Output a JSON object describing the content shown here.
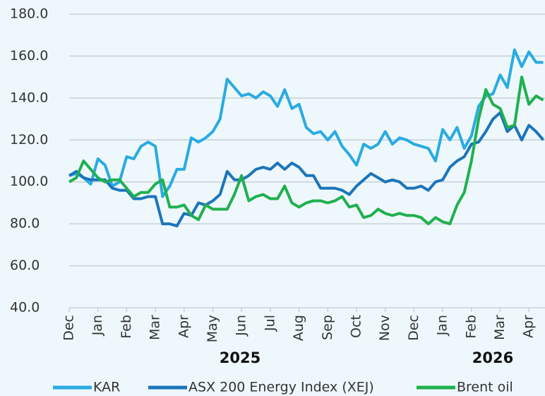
{
  "chart_data": {
    "type": "line",
    "annotations": [
      "2025",
      "2026"
    ],
    "x": [
      0,
      0.25,
      0.5,
      0.75,
      1,
      1.25,
      1.5,
      1.75,
      2,
      2.25,
      2.5,
      2.75,
      3,
      3.25,
      3.5,
      3.75,
      4,
      4.25,
      4.5,
      4.75,
      5,
      5.25,
      5.5,
      5.75,
      6,
      6.25,
      6.5,
      6.75,
      7,
      7.25,
      7.5,
      7.75,
      8,
      8.25,
      8.5,
      8.75,
      9,
      9.25,
      9.5,
      9.75,
      10,
      10.25,
      10.5,
      10.75,
      11,
      11.25,
      11.5,
      11.75,
      12,
      12.25,
      12.5,
      12.75,
      13,
      13.25,
      13.5,
      13.75,
      14,
      14.25,
      14.5,
      14.75,
      15,
      15.25,
      15.5,
      15.75,
      16,
      16.25,
      16.5
    ],
    "series": [
      {
        "name": "KAR",
        "color": "#29abe2",
        "values": [
          103,
          104,
          102,
          99,
          111,
          108,
          98,
          100,
          112,
          111,
          117,
          119,
          117,
          93,
          98,
          106,
          106,
          121,
          119,
          121,
          124,
          130,
          149,
          145,
          141,
          142,
          140,
          143,
          141,
          136,
          144,
          135,
          137,
          126,
          123,
          124,
          120,
          124,
          117,
          113,
          108,
          118,
          116,
          118,
          124,
          118,
          121,
          120,
          118,
          117,
          116,
          110,
          125,
          120,
          126,
          116,
          122,
          136,
          141,
          142,
          151,
          145,
          163,
          155,
          162,
          157,
          157
        ]
      },
      {
        "name": "ASX 200 Energy Index (XEJ)",
        "color": "#1b75bb",
        "values": [
          103,
          105,
          102,
          101,
          101,
          101,
          97,
          96,
          96,
          92,
          92,
          93,
          93,
          80,
          80,
          79,
          85,
          84,
          90,
          89,
          91,
          94,
          105,
          101,
          101,
          103,
          106,
          107,
          106,
          109,
          106,
          109,
          107,
          103,
          103,
          97,
          97,
          97,
          96,
          94,
          98,
          101,
          104,
          102,
          100,
          101,
          100,
          97,
          97,
          98,
          96,
          100,
          101,
          107,
          110,
          112,
          118,
          119,
          124,
          130,
          133,
          124,
          127,
          120,
          127,
          124,
          120
        ]
      },
      {
        "name": "Brent oil",
        "color": "#1fb04f",
        "values": [
          100,
          102,
          110,
          106,
          102,
          100,
          101,
          101,
          97,
          93,
          95,
          95,
          99,
          101,
          88,
          88,
          89,
          84,
          82,
          89,
          87,
          87,
          87,
          94,
          103,
          91,
          93,
          94,
          92,
          92,
          98,
          90,
          88,
          90,
          91,
          91,
          90,
          91,
          93,
          88,
          89,
          83,
          84,
          87,
          85,
          84,
          85,
          84,
          84,
          83,
          80,
          83,
          81,
          80,
          89,
          95,
          110,
          130,
          144,
          137,
          135,
          126,
          127,
          150,
          137,
          141,
          139
        ]
      }
    ],
    "xlim": [
      0,
      16.56
    ],
    "xticks": [
      {
        "value": 0,
        "label": "Dec"
      },
      {
        "value": 1,
        "label": "Jan"
      },
      {
        "value": 2,
        "label": "Feb"
      },
      {
        "value": 3,
        "label": "Mar"
      },
      {
        "value": 4,
        "label": "Apr"
      },
      {
        "value": 5,
        "label": "May"
      },
      {
        "value": 6,
        "label": "Jun"
      },
      {
        "value": 7,
        "label": "Jul"
      },
      {
        "value": 8,
        "label": "Aug"
      },
      {
        "value": 9,
        "label": "Sep"
      },
      {
        "value": 10,
        "label": "Oct"
      },
      {
        "value": 11,
        "label": "Nov"
      },
      {
        "value": 12,
        "label": "Dec"
      },
      {
        "value": 13,
        "label": "Jan"
      },
      {
        "value": 14,
        "label": "Feb"
      },
      {
        "value": 15,
        "label": "Mar"
      },
      {
        "value": 16,
        "label": "Apr"
      }
    ],
    "ylim": [
      40,
      180
    ],
    "yticks": [
      {
        "value": 40,
        "label": "40.0"
      },
      {
        "value": 60,
        "label": "60.0"
      },
      {
        "value": 80,
        "label": "80.0"
      },
      {
        "value": 100,
        "label": "100.0"
      },
      {
        "value": 120,
        "label": "120.0"
      },
      {
        "value": 140,
        "label": "140.0"
      },
      {
        "value": 160,
        "label": "160.0"
      },
      {
        "value": 180,
        "label": "180.0"
      }
    ],
    "grid": true,
    "legend": "bottom"
  }
}
